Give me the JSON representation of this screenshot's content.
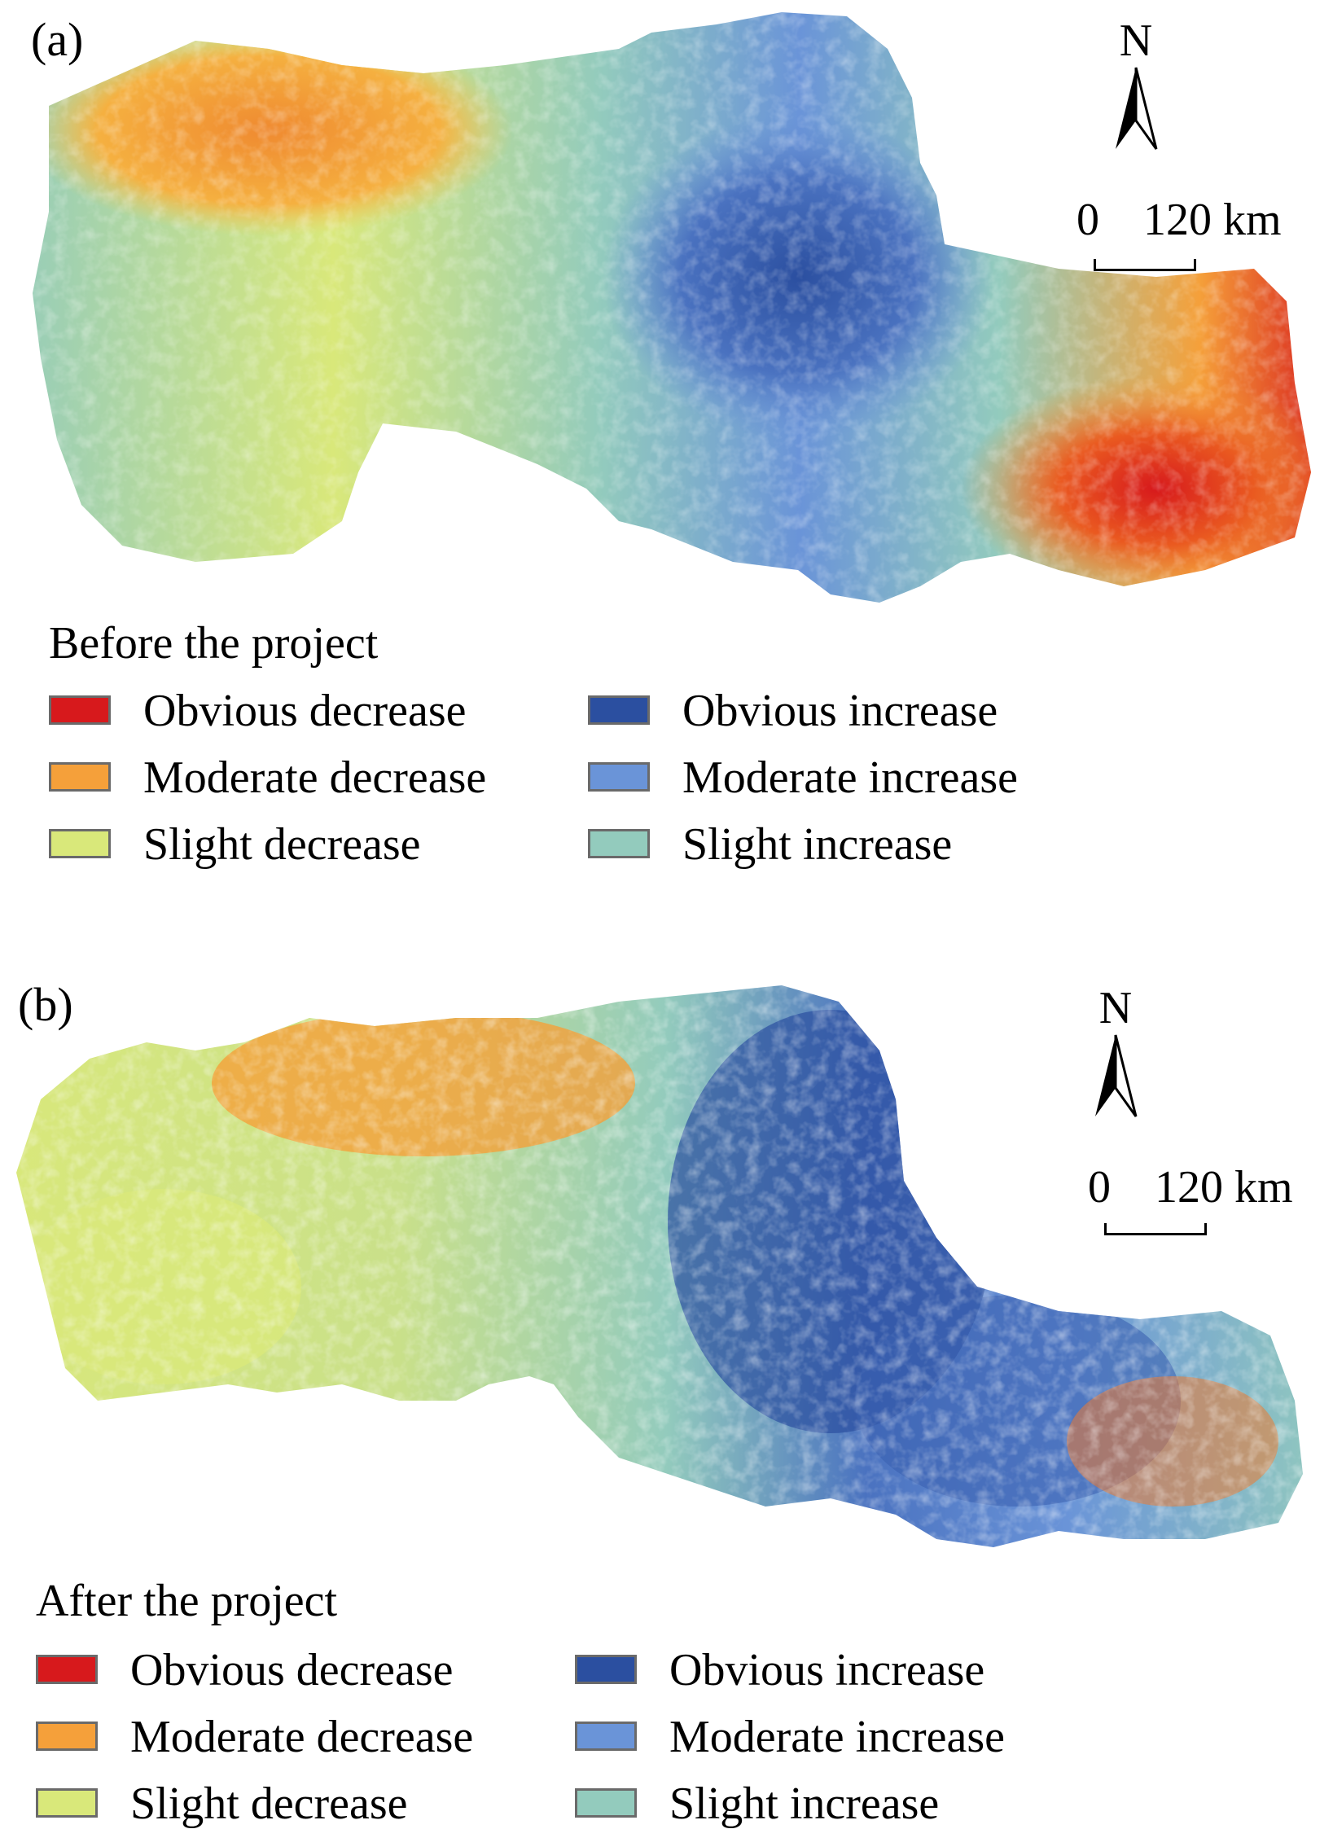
{
  "panels": [
    {
      "id": "a",
      "label": "(a)",
      "legend_title": "Before the project",
      "north_label": "N",
      "scale_zero": "0",
      "scale_dist": "120 km"
    },
    {
      "id": "b",
      "label": "(b)",
      "legend_title": "After the project",
      "north_label": "N",
      "scale_zero": "0",
      "scale_dist": "120 km"
    }
  ],
  "legend": [
    {
      "label": "Obvious decrease",
      "color": "#d7191c"
    },
    {
      "label": "Moderate decrease",
      "color": "#f5a03a"
    },
    {
      "label": "Slight decrease",
      "color": "#d9e87a"
    },
    {
      "label": "Obvious increase",
      "color": "#2b4fa0"
    },
    {
      "label": "Moderate increase",
      "color": "#6a94d8"
    },
    {
      "label": "Slight increase",
      "color": "#93cbbd"
    }
  ]
}
